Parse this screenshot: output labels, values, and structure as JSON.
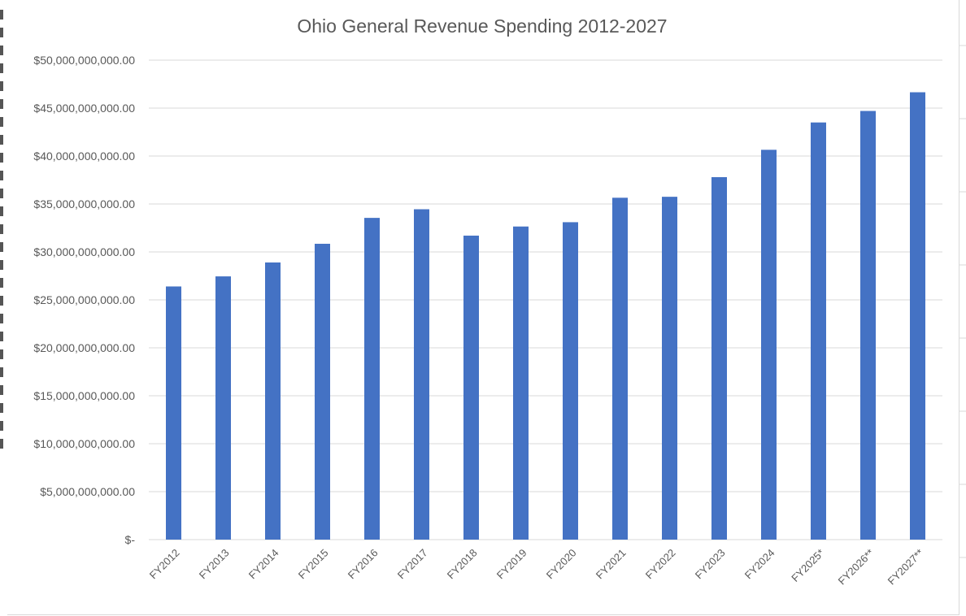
{
  "colors": {
    "bar": "#4472C4",
    "grid": "#d9d9d9",
    "text": "#595959",
    "background": "#ffffff"
  },
  "chart_data": {
    "type": "bar",
    "title": "Ohio  General Revenue Spending 2012-2027",
    "xlabel": "",
    "ylabel": "",
    "ylim": [
      0,
      50000000000
    ],
    "grid": true,
    "legend": "none",
    "categories": [
      "FY2012",
      "FY2013",
      "FY2014",
      "FY2015",
      "FY2016",
      "FY2017",
      "FY2018",
      "FY2019",
      "FY2020",
      "FY2021",
      "FY2022",
      "FY2023",
      "FY2024",
      "FY2025*",
      "FY2026**",
      "FY2027**"
    ],
    "values": [
      26400000000,
      27450000000,
      28900000000,
      30850000000,
      33550000000,
      34450000000,
      31700000000,
      32650000000,
      33100000000,
      35650000000,
      35750000000,
      37800000000,
      40650000000,
      43500000000,
      44700000000,
      46650000000
    ],
    "y_ticks": [
      0,
      5000000000,
      10000000000,
      15000000000,
      20000000000,
      25000000000,
      30000000000,
      35000000000,
      40000000000,
      45000000000,
      50000000000
    ],
    "y_tick_labels": [
      "$-",
      "$5,000,000,000.00",
      "$10,000,000,000.00",
      "$15,000,000,000.00",
      "$20,000,000,000.00",
      "$25,000,000,000.00",
      "$30,000,000,000.00",
      "$35,000,000,000.00",
      "$40,000,000,000.00",
      "$45,000,000,000.00",
      "$50,000,000,000.00"
    ]
  }
}
